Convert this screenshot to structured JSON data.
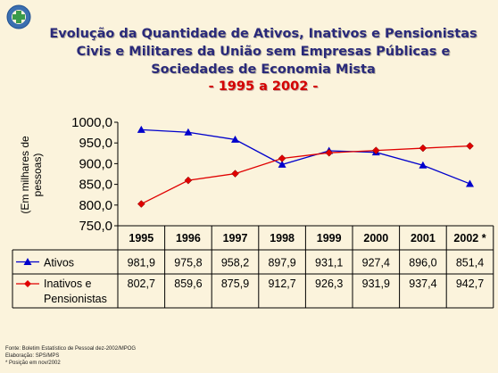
{
  "title": {
    "lines": [
      "Evolução da Quantidade de Ativos, Inativos e Pensionistas",
      "Civis e Militares da União sem Empresas Públicas e",
      "Sociedades de Economia Mista"
    ],
    "period": "- 1995 a 2002 -"
  },
  "colors": {
    "title": "#2a2a7a",
    "period": "#d40000",
    "ativos": "#0000cc",
    "inativos": "#e00000",
    "background": "#fbf3dc"
  },
  "chart_data": {
    "type": "line",
    "ylabel": "(Em milhares de pessoas)",
    "ylim": [
      750,
      1000
    ],
    "yticks": [
      "1000,0",
      "950,0",
      "900,0",
      "850,0",
      "800,0",
      "750,0"
    ],
    "ytick_values": [
      1000,
      950,
      900,
      850,
      800,
      750
    ],
    "categories": [
      "1995",
      "1996",
      "1997",
      "1998",
      "1999",
      "2000",
      "2001",
      "2002 *"
    ],
    "grid": false,
    "legend": "table-bottom",
    "series": [
      {
        "name": "Ativos",
        "color": "#0000cc",
        "marker": "triangle",
        "values": [
          981.9,
          975.8,
          958.2,
          897.9,
          931.1,
          927.4,
          896.0,
          851.4
        ],
        "labels": [
          "981,9",
          "975,8",
          "958,2",
          "897,9",
          "931,1",
          "927,4",
          "896,0",
          "851,4"
        ]
      },
      {
        "name": "Inativos e Pensionistas",
        "name_lines": [
          "Inativos e",
          "Pensionistas"
        ],
        "color": "#e00000",
        "marker": "diamond",
        "values": [
          802.7,
          859.6,
          875.9,
          912.7,
          926.3,
          931.9,
          937.4,
          942.7
        ],
        "labels": [
          "802,7",
          "859,6",
          "875,9",
          "912,7",
          "926,3",
          "931,9",
          "937,4",
          "942,7"
        ]
      }
    ]
  },
  "footer": {
    "lines": [
      "Fonte: Boletim Estatístico de Pessoal dez-2002/MPOG",
      "Elaboração: SPS/MPS",
      "* Posição em nov/2002"
    ]
  }
}
